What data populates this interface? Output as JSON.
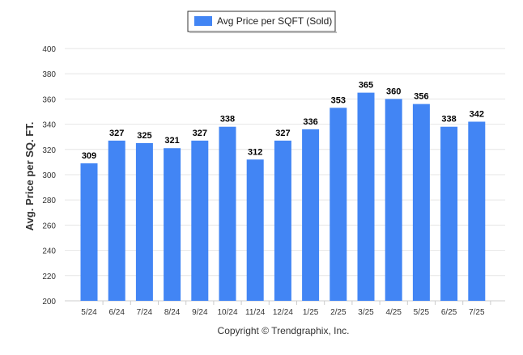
{
  "chart_data": {
    "type": "bar",
    "legend": "Avg Price per SQFT (Sold)",
    "legend_position": "top-center",
    "ylabel": "Avg. Price per SQ. FT.",
    "xlabel": "",
    "title": "",
    "ylim": [
      200,
      400
    ],
    "yticks": [
      200,
      220,
      240,
      260,
      280,
      300,
      320,
      340,
      360,
      380,
      400
    ],
    "grid": true,
    "bar_color": "#4285f4",
    "categories": [
      "5/24",
      "6/24",
      "7/24",
      "8/24",
      "9/24",
      "10/24",
      "11/24",
      "12/24",
      "1/25",
      "2/25",
      "3/25",
      "4/25",
      "5/25",
      "6/25",
      "7/25"
    ],
    "values": [
      309,
      327,
      325,
      321,
      327,
      338,
      312,
      327,
      336,
      353,
      365,
      360,
      356,
      338,
      342
    ]
  },
  "footer": {
    "copyright": "Copyright © Trendgraphix, Inc."
  }
}
